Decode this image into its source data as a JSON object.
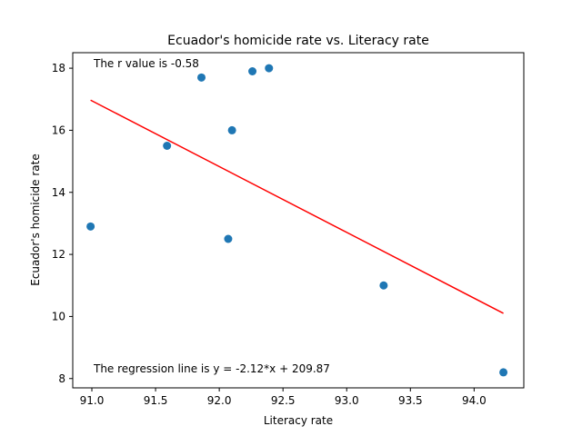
{
  "chart_data": {
    "type": "scatter",
    "title": "Ecuador's homicide rate vs. Literacy rate",
    "xlabel": "Literacy rate",
    "ylabel": "Ecuador's homicide rate",
    "xlim": [
      90.85,
      94.39
    ],
    "ylim": [
      7.7,
      18.5
    ],
    "xticks": [
      "91.0",
      "91.5",
      "92.0",
      "92.5",
      "93.0",
      "93.5",
      "94.0"
    ],
    "yticks": [
      "8",
      "10",
      "12",
      "14",
      "16",
      "18"
    ],
    "grid": false,
    "points": [
      {
        "x": 90.99,
        "y": 12.9
      },
      {
        "x": 91.59,
        "y": 15.5
      },
      {
        "x": 91.86,
        "y": 17.7
      },
      {
        "x": 92.07,
        "y": 12.5
      },
      {
        "x": 92.1,
        "y": 16.0
      },
      {
        "x": 92.26,
        "y": 17.9
      },
      {
        "x": 92.39,
        "y": 18.0
      },
      {
        "x": 93.29,
        "y": 11.0
      },
      {
        "x": 94.23,
        "y": 8.2
      }
    ],
    "regression": {
      "slope": -2.12,
      "intercept": 209.87,
      "x_start": 90.99,
      "x_end": 94.23
    },
    "annotations": {
      "r_value": "The r value is -0.58",
      "regression_line": "The regression line is y = -2.12*x + 209.87"
    },
    "colors": {
      "points": "#1f77b4",
      "regression": "#ff0000"
    }
  }
}
